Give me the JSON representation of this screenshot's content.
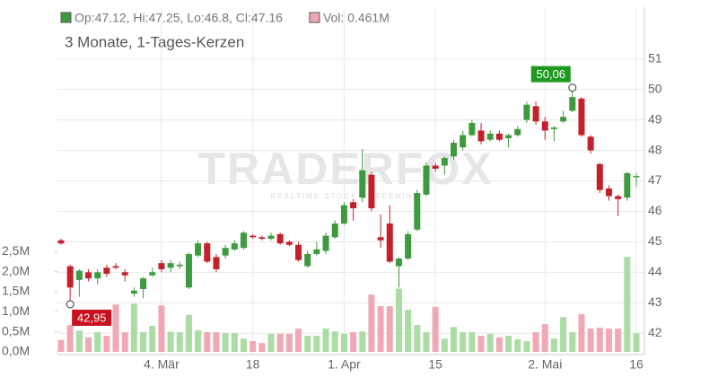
{
  "chart_data": {
    "type": "candlestick",
    "subtitle": "3 Monate, 1-Tages-Kerzen",
    "legend": [
      {
        "text": "Op:47.12, Hi:47.25, Lo:46.8, Cl:47.16",
        "color": "#3e9a3e"
      },
      {
        "text": "Vol: 0.461M",
        "color": "#f0a8b4"
      }
    ],
    "watermark": {
      "title": "TRADERFOX",
      "tagline": "REALTIME STOCK SCREENING"
    },
    "categories": [
      null,
      null,
      null,
      null,
      null,
      null,
      null,
      null,
      null,
      null,
      null,
      "4. Mär",
      null,
      null,
      null,
      null,
      null,
      null,
      null,
      null,
      null,
      "18",
      null,
      null,
      null,
      null,
      null,
      null,
      null,
      null,
      null,
      "1. Apr",
      null,
      null,
      null,
      null,
      null,
      null,
      null,
      null,
      null,
      "15",
      null,
      null,
      null,
      null,
      null,
      null,
      null,
      null,
      null,
      null,
      null,
      "2. Mai",
      null,
      null,
      null,
      null,
      null,
      null,
      null,
      null,
      null,
      "16"
    ],
    "open": [
      45.05,
      44.2,
      43.75,
      44.0,
      43.8,
      44.15,
      44.2,
      44.0,
      43.3,
      43.45,
      43.9,
      44.3,
      44.15,
      44.2,
      43.5,
      44.55,
      44.95,
      44.5,
      44.55,
      44.75,
      44.8,
      45.2,
      45.15,
      45.1,
      45.25,
      45.0,
      44.9,
      44.2,
      44.6,
      44.7,
      45.15,
      45.6,
      46.3,
      46.45,
      47.2,
      45.15,
      45.6,
      44.2,
      44.45,
      45.4,
      46.55,
      47.5,
      47.5,
      47.8,
      48.1,
      48.5,
      48.65,
      48.35,
      48.55,
      48.4,
      48.5,
      49.0,
      49.45,
      48.95,
      48.7,
      48.95,
      49.3,
      49.7,
      48.45,
      47.55,
      46.75,
      46.5,
      46.45,
      47.12
    ],
    "high": [
      45.1,
      44.25,
      44.1,
      44.1,
      44.1,
      44.25,
      44.3,
      44.1,
      43.5,
      43.85,
      44.15,
      44.4,
      44.4,
      44.35,
      44.65,
      45.05,
      45.0,
      44.6,
      44.9,
      45.05,
      45.35,
      45.25,
      45.2,
      45.3,
      45.3,
      45.05,
      45.0,
      44.7,
      45.0,
      45.3,
      45.7,
      46.3,
      46.4,
      48.05,
      47.3,
      45.9,
      46.2,
      44.5,
      45.35,
      46.7,
      47.6,
      47.6,
      47.8,
      48.35,
      48.65,
      49.0,
      48.9,
      48.65,
      48.65,
      48.55,
      48.8,
      49.6,
      49.6,
      49.1,
      48.8,
      49.3,
      50.06,
      49.75,
      48.5,
      47.6,
      46.85,
      46.55,
      47.3,
      47.25
    ],
    "low": [
      44.9,
      42.95,
      43.2,
      43.7,
      43.6,
      43.85,
      44.1,
      43.7,
      43.2,
      43.15,
      43.85,
      44.0,
      44.0,
      44.1,
      43.45,
      44.5,
      44.3,
      44.0,
      44.45,
      44.7,
      44.75,
      45.1,
      45.05,
      45.05,
      44.9,
      44.85,
      44.35,
      44.15,
      44.55,
      44.6,
      45.1,
      45.55,
      45.7,
      46.3,
      46.0,
      44.8,
      44.3,
      43.5,
      44.4,
      45.35,
      46.5,
      47.3,
      47.2,
      47.7,
      48.0,
      48.45,
      48.2,
      48.3,
      48.3,
      48.1,
      48.45,
      48.9,
      48.85,
      48.35,
      48.3,
      48.9,
      49.25,
      48.45,
      47.9,
      46.6,
      46.35,
      45.85,
      46.35,
      46.8
    ],
    "close": [
      44.95,
      43.5,
      44.05,
      43.8,
      44.0,
      43.95,
      44.15,
      43.9,
      43.4,
      43.8,
      44.0,
      44.1,
      44.3,
      44.25,
      44.6,
      44.95,
      44.35,
      44.1,
      44.8,
      44.95,
      45.3,
      45.15,
      45.1,
      45.2,
      44.95,
      44.9,
      44.4,
      44.6,
      44.75,
      45.2,
      45.6,
      46.2,
      46.1,
      47.35,
      46.1,
      45.05,
      44.35,
      44.45,
      45.25,
      46.6,
      47.5,
      47.4,
      47.75,
      48.25,
      48.5,
      48.9,
      48.3,
      48.55,
      48.35,
      48.5,
      48.7,
      49.5,
      48.95,
      48.65,
      48.75,
      49.1,
      49.75,
      48.5,
      48.0,
      46.7,
      46.5,
      46.4,
      47.25,
      47.16
    ],
    "volume": [
      0.3,
      0.67,
      0.53,
      0.36,
      0.49,
      0.4,
      1.18,
      0.49,
      1.2,
      0.49,
      0.65,
      1.16,
      0.5,
      0.49,
      0.92,
      0.54,
      0.49,
      0.49,
      0.47,
      0.47,
      0.33,
      0.27,
      0.22,
      0.45,
      0.45,
      0.45,
      0.58,
      0.4,
      0.4,
      0.58,
      0.51,
      0.45,
      0.49,
      0.51,
      1.43,
      1.14,
      1.14,
      1.58,
      1.05,
      0.67,
      0.49,
      1.12,
      0.33,
      0.62,
      0.49,
      0.49,
      0.4,
      0.45,
      0.36,
      0.4,
      0.31,
      0.27,
      0.49,
      0.69,
      0.33,
      0.87,
      0.49,
      0.94,
      0.58,
      0.6,
      0.58,
      0.58,
      2.37,
      0.461
    ],
    "up_color": "#3e9a3e",
    "down_color": "#c4202c",
    "volume_up_color": "#aadca4",
    "volume_down_color": "#f0a8b4",
    "ylim": [
      41.3,
      52.7
    ],
    "yticks": [
      42,
      43,
      44,
      45,
      46,
      47,
      48,
      49,
      50,
      51
    ],
    "y2lim": [
      0,
      8.6
    ],
    "y2ticks": [
      {
        "value": 0,
        "label": "0,0M"
      },
      {
        "value": 0.5,
        "label": "0,5M"
      },
      {
        "value": 1,
        "label": "1,0M"
      },
      {
        "value": 1.5,
        "label": "1,5M"
      },
      {
        "value": 2,
        "label": "2,0M"
      },
      {
        "value": 2.5,
        "label": "2,5M"
      }
    ],
    "annotations": [
      {
        "text": "50,06",
        "index": 56,
        "value": 50.06,
        "color": "#1f9a1f"
      },
      {
        "text": "42,95",
        "index": 1,
        "value": 42.95,
        "color": "#c8101e"
      }
    ],
    "grid": true
  }
}
